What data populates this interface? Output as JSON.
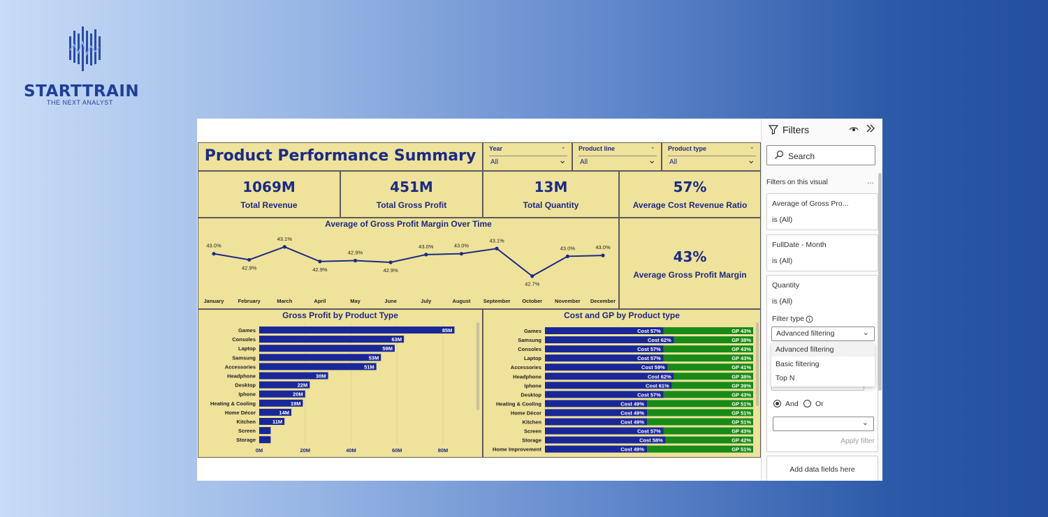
{
  "logo": {
    "name": "STARTTRAIN",
    "tagline": "THE NEXT ANALYST"
  },
  "dashboard": {
    "title": "Product Performance Summary",
    "slicers": [
      {
        "label": "Year",
        "value": "All"
      },
      {
        "label": "Product line",
        "value": "All"
      },
      {
        "label": "Product type",
        "value": "All"
      }
    ],
    "kpis": [
      {
        "value": "1069M",
        "label": "Total Revenue"
      },
      {
        "value": "451M",
        "label": "Total Gross Profit"
      },
      {
        "value": "13M",
        "label": "Total Quantity"
      },
      {
        "value": "57%",
        "label": "Average Cost Revenue Ratio"
      }
    ],
    "kpi_margin": {
      "value": "43%",
      "label": "Average Gross Profit Margin"
    },
    "colors": {
      "tile": "#efe29a",
      "navy": "#1b2b86",
      "bar": "#1a2799",
      "green": "#188a18"
    }
  },
  "chart_data": [
    {
      "type": "line",
      "title": "Average of Gross Profit Margin Over Time",
      "categories": [
        "January",
        "February",
        "March",
        "April",
        "May",
        "June",
        "July",
        "August",
        "September",
        "October",
        "November",
        "December"
      ],
      "values": [
        43.0,
        42.9,
        43.1,
        42.9,
        42.9,
        42.9,
        43.0,
        43.0,
        43.1,
        42.7,
        43.0,
        43.0
      ],
      "labels": [
        "43.0%",
        "42.9%",
        "43.1%",
        "42.9%",
        "42.9%",
        "42.9%",
        "43.0%",
        "43.0%",
        "43.1%",
        "42.7%",
        "43.0%",
        "43.0%"
      ],
      "plotted": [
        43.0,
        42.93,
        43.08,
        42.91,
        42.92,
        42.9,
        42.99,
        43.0,
        43.06,
        42.74,
        42.97,
        42.98
      ],
      "ylim": [
        42.6,
        43.2
      ],
      "legend": "none"
    },
    {
      "type": "bar",
      "orientation": "horizontal",
      "title": "Gross Profit by Product Type",
      "categories": [
        "Games",
        "Consoles",
        "Laptop",
        "Samsung",
        "Accessories",
        "Headphone",
        "Desktop",
        "Iphone",
        "Heating & Cooling",
        "Home Décor",
        "Kitchen",
        "Screen",
        "Storage"
      ],
      "values": [
        85,
        63,
        59,
        53,
        51,
        30,
        22,
        20,
        19,
        14,
        11,
        5,
        5
      ],
      "labels": [
        "85M",
        "63M",
        "59M",
        "53M",
        "51M",
        "30M",
        "22M",
        "20M",
        "19M",
        "14M",
        "11M",
        "",
        ""
      ],
      "xticks": [
        "0M",
        "20M",
        "40M",
        "60M",
        "80M"
      ],
      "xlim": [
        0,
        90
      ]
    },
    {
      "type": "bar",
      "stacked": "100%",
      "orientation": "horizontal",
      "title": "Cost and GP by Product type",
      "categories": [
        "Games",
        "Samsung",
        "Consoles",
        "Laptop",
        "Accessories",
        "Headphone",
        "Iphone",
        "Desktop",
        "Heating & Cooling",
        "Home Décor",
        "Kitchen",
        "Screen",
        "Storage",
        "Home Improvement"
      ],
      "series": [
        {
          "name": "Cost",
          "values": [
            57,
            62,
            57,
            57,
            59,
            62,
            61,
            57,
            49,
            49,
            49,
            57,
            58,
            49
          ]
        },
        {
          "name": "GP",
          "values": [
            43,
            38,
            43,
            43,
            41,
            38,
            39,
            43,
            51,
            51,
            51,
            43,
            42,
            51
          ]
        }
      ]
    }
  ],
  "filters": {
    "title": "Filters",
    "search_placeholder": "Search",
    "section": "Filters on this visual",
    "more": "...",
    "cards": [
      {
        "name": "Average of Gross Pro...",
        "value": "is (All)"
      },
      {
        "name": "FullDate - Month",
        "value": "is (All)"
      },
      {
        "name": "Quantity",
        "value": "is (All)"
      }
    ],
    "filter_type_label": "Filter type",
    "filter_type_value": "Advanced filtering",
    "options": [
      "Advanced filtering",
      "Basic filtering",
      "Top N"
    ],
    "and_label": "And",
    "or_label": "Or",
    "apply_label": "Apply filter",
    "add_data": "Add data fields here"
  }
}
